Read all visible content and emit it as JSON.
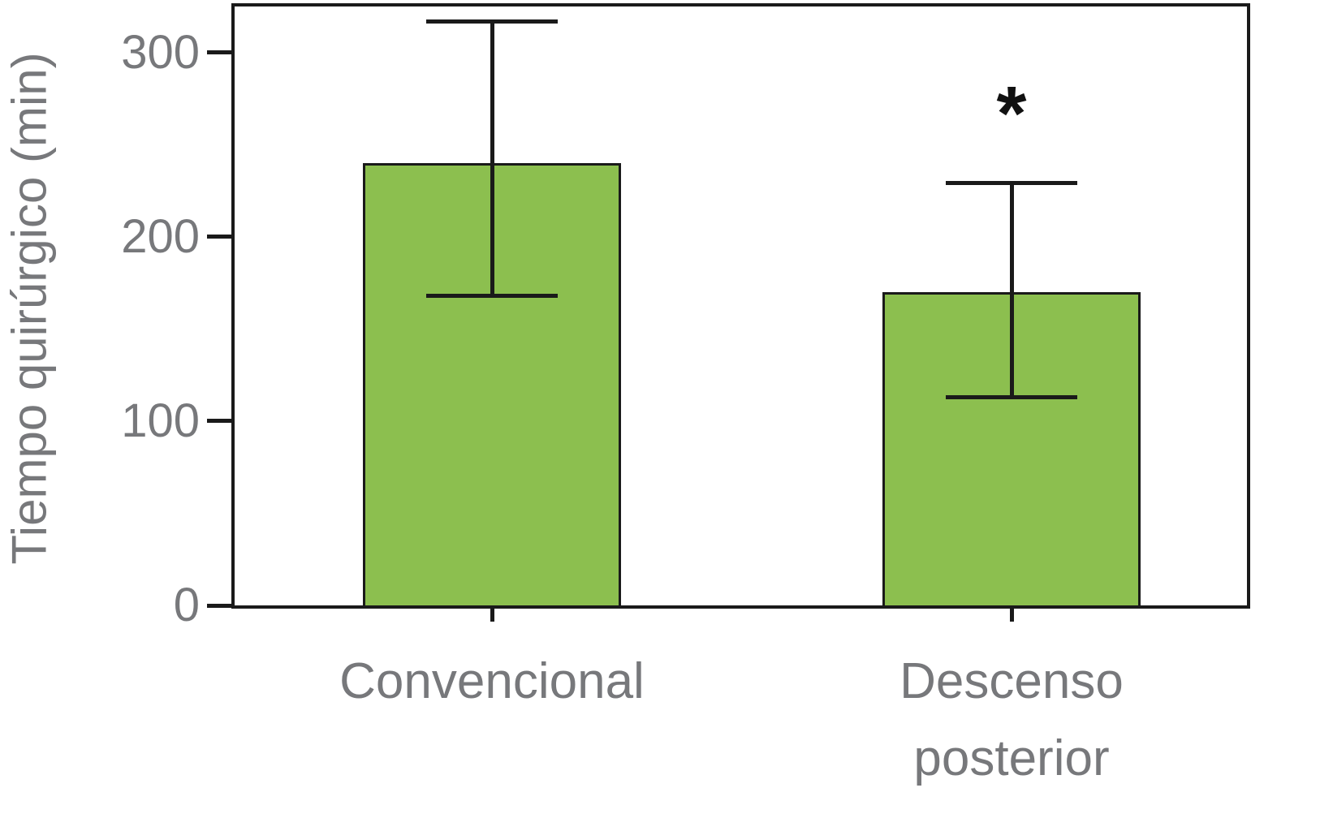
{
  "chart_data": {
    "type": "bar",
    "title": "",
    "ylabel": "Tiempo quirúrgico (min)",
    "xlabel": "",
    "categories": [
      "Convencional",
      "Descenso\nposterior"
    ],
    "series": [
      {
        "name": "Tiempo quirúrgico (min)",
        "values": [
          240,
          170
        ],
        "error_low": [
          168,
          113
        ],
        "error_high": [
          317,
          229
        ]
      }
    ],
    "yticks": [
      0,
      100,
      200,
      300
    ],
    "ylim": [
      0,
      325
    ],
    "grid": false,
    "legend": "none",
    "annotations": [
      {
        "category_index": 1,
        "text": "*"
      }
    ],
    "colors": {
      "bar_fill": "#8cbf4f",
      "bar_border": "#1a1a1a",
      "axis": "#1a1a1a",
      "labels": "#77787b",
      "annotation": "#111111"
    }
  }
}
